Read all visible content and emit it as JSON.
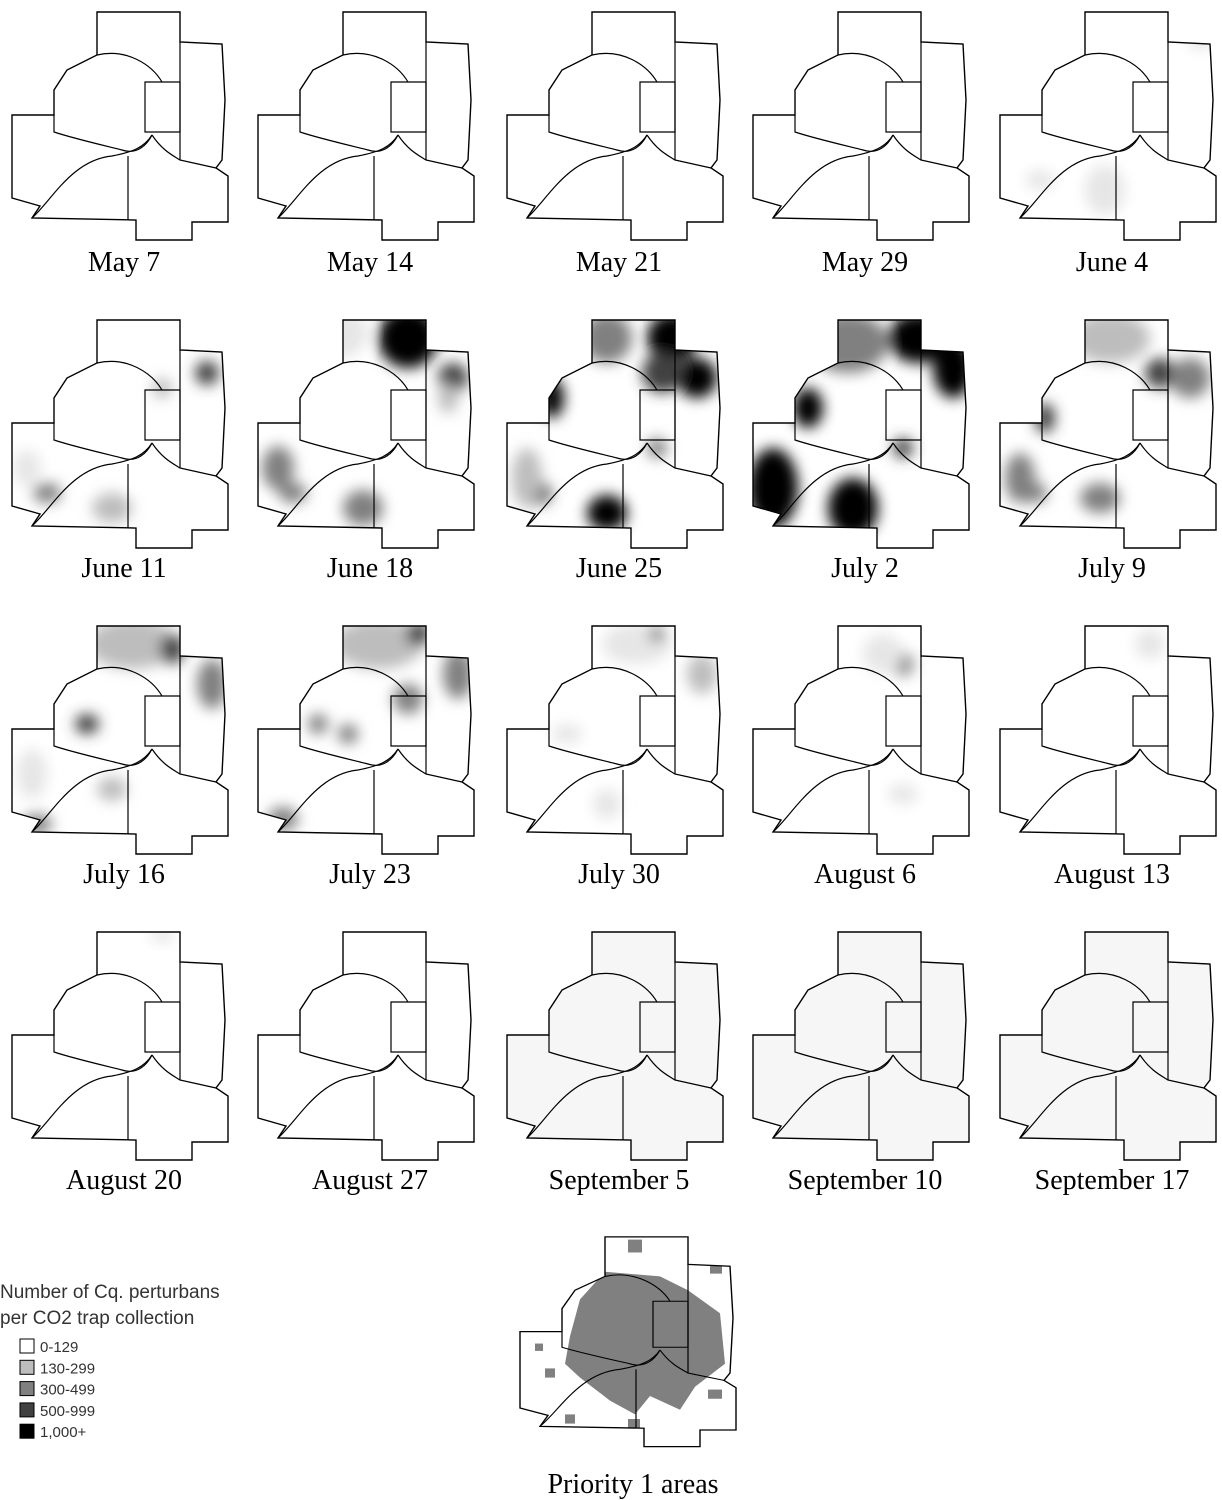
{
  "maps": [
    {
      "label": "May 7"
    },
    {
      "label": "May 14"
    },
    {
      "label": "May 21"
    },
    {
      "label": "May 29"
    },
    {
      "label": "June 4"
    },
    {
      "label": "June 11"
    },
    {
      "label": "June 18"
    },
    {
      "label": "June 25"
    },
    {
      "label": "July 2"
    },
    {
      "label": "July 9"
    },
    {
      "label": "July 16"
    },
    {
      "label": "July 23"
    },
    {
      "label": "July 30"
    },
    {
      "label": "August 6"
    },
    {
      "label": "August 13"
    },
    {
      "label": "August 20"
    },
    {
      "label": "August 27"
    },
    {
      "label": "September 5"
    },
    {
      "label": "September 10"
    },
    {
      "label": "September 17"
    }
  ],
  "legend": {
    "title": [
      "Number of Cq. perturbans",
      "per CO2 trap collection"
    ],
    "items": [
      {
        "label": "0-129",
        "color": "#ffffff"
      },
      {
        "label": "130-299",
        "color": "#bdbdbd"
      },
      {
        "label": "300-499",
        "color": "#808080"
      },
      {
        "label": "500-999",
        "color": "#404040"
      },
      {
        "label": "1,000+",
        "color": "#000000"
      }
    ]
  },
  "priority_map": {
    "label": "Priority 1 areas"
  }
}
